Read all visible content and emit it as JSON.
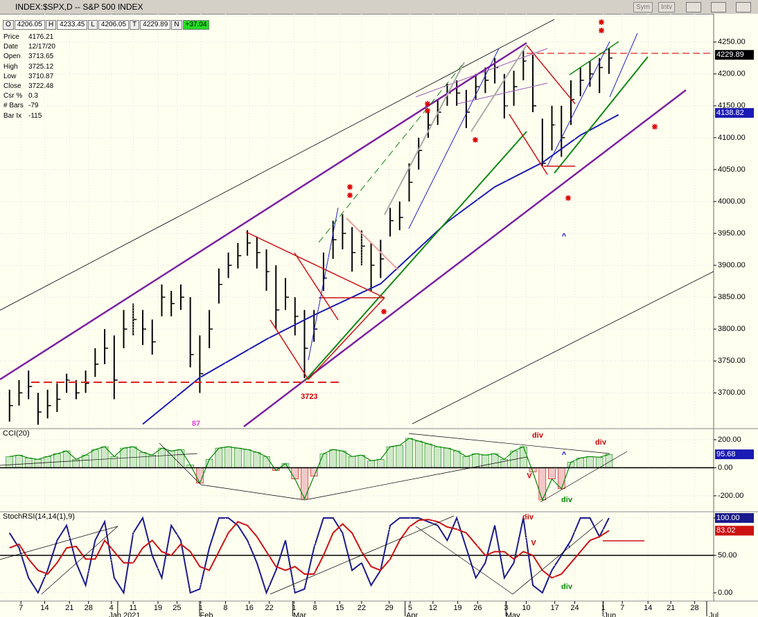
{
  "window": {
    "title": "INDEX:$SPX,D -- S&P 500 INDEX",
    "buttons": [
      "Sym",
      "Intv"
    ]
  },
  "ohlc_row": [
    {
      "label": "O",
      "value": "4206.05"
    },
    {
      "label": "H",
      "value": "4233.45"
    },
    {
      "label": "L",
      "value": "4206.05"
    },
    {
      "label": "T",
      "value": "4229.89"
    },
    {
      "label": "N",
      "value": "+37.04"
    }
  ],
  "info": [
    [
      "Price",
      "4176.21"
    ],
    [
      "Date",
      "12/17/20"
    ],
    [
      "Open",
      "3713.65"
    ],
    [
      "High",
      "3725.12"
    ],
    [
      "Low",
      "3710.87"
    ],
    [
      "Close",
      "3722.48"
    ],
    [
      "Csr %",
      "0.3"
    ],
    [
      "# Bars",
      "-79"
    ],
    [
      "Bar Ix",
      "-115"
    ]
  ],
  "chart_data": [
    {
      "type": "ohlc",
      "color": "#000000",
      "x": [
        1,
        2,
        3,
        4,
        5,
        6,
        7,
        8,
        9,
        10,
        11,
        12,
        13,
        14,
        15,
        16,
        17,
        18,
        19,
        20,
        21,
        22,
        23,
        24,
        25,
        26,
        27,
        28,
        29,
        30,
        31,
        32,
        33,
        34,
        35,
        36,
        37,
        38,
        39,
        40,
        41,
        42,
        43,
        44,
        45,
        46,
        47,
        48,
        49,
        50,
        51,
        52,
        53,
        54,
        55,
        56,
        57,
        58,
        59,
        60,
        61,
        62,
        63,
        64
      ],
      "high": [
        3705,
        3720,
        3735,
        3700,
        3705,
        3715,
        3730,
        3720,
        3735,
        3770,
        3800,
        3790,
        3830,
        3840,
        3830,
        3815,
        3870,
        3860,
        3870,
        3850,
        3790,
        3830,
        3895,
        3920,
        3935,
        3955,
        3945,
        3925,
        3900,
        3880,
        3850,
        3830,
        3830,
        3920,
        3970,
        3980,
        3960,
        3955,
        3935,
        3940,
        3990,
        4000,
        4060,
        4100,
        4145,
        4160,
        4185,
        4190,
        4175,
        4200,
        4210,
        4225,
        4200,
        4205,
        4238,
        4230,
        4130,
        4150,
        4150,
        4190,
        4210,
        4220,
        4225,
        4240
      ],
      "low": [
        3655,
        3680,
        3690,
        3650,
        3660,
        3670,
        3700,
        3690,
        3700,
        3725,
        3745,
        3690,
        3770,
        3790,
        3775,
        3760,
        3820,
        3820,
        3830,
        3740,
        3700,
        3770,
        3840,
        3880,
        3895,
        3915,
        3895,
        3860,
        3800,
        3830,
        3790,
        3723,
        3780,
        3860,
        3910,
        3925,
        3890,
        3900,
        3860,
        3880,
        3945,
        3955,
        4000,
        4050,
        4100,
        4120,
        4150,
        4150,
        4115,
        4160,
        4170,
        4185,
        4130,
        4150,
        4190,
        4140,
        4055,
        4080,
        4070,
        4120,
        4165,
        4180,
        4170,
        4200
      ],
      "close": [
        3680,
        3700,
        3710,
        3670,
        3680,
        3690,
        3720,
        3700,
        3715,
        3745,
        3770,
        3720,
        3800,
        3815,
        3800,
        3780,
        3850,
        3840,
        3850,
        3760,
        3730,
        3800,
        3870,
        3900,
        3915,
        3935,
        3920,
        3890,
        3830,
        3850,
        3820,
        3770,
        3800,
        3880,
        3940,
        3950,
        3920,
        3930,
        3900,
        3910,
        3970,
        3975,
        4030,
        4080,
        4120,
        4140,
        4170,
        4170,
        4140,
        4180,
        4190,
        4210,
        4150,
        4180,
        4220,
        4150,
        4060,
        4120,
        4100,
        4160,
        4190,
        4200,
        4210,
        4225
      ],
      "moving_average": {
        "color": "#1a1ab4",
        "x": [
          15,
          21,
          28,
          33,
          40,
          47,
          52,
          57,
          61,
          65
        ],
        "values": [
          3651,
          3724,
          3784,
          3822,
          3871,
          3968,
          4023,
          4061,
          4104,
          4136
        ]
      },
      "last_price": 4229.89,
      "last_ma": 4138.82,
      "xlim": [
        0,
        75
      ],
      "ylim": [
        3645,
        4292
      ],
      "yticks": [
        {
          "value": 3700,
          "label": "3700.00"
        },
        {
          "value": 3750,
          "label": "3750.00"
        },
        {
          "value": 3800,
          "label": "3800.00"
        },
        {
          "value": 3850,
          "label": "3850.00"
        },
        {
          "value": 3900,
          "label": "3900.00"
        },
        {
          "value": 3950,
          "label": "3950.00"
        },
        {
          "value": 4000,
          "label": "4000.00"
        },
        {
          "value": 4050,
          "label": "4050.00"
        },
        {
          "value": 4100,
          "label": "4100.00"
        },
        {
          "value": 4150,
          "label": "4150.00"
        },
        {
          "value": 4200,
          "label": "4200.00"
        },
        {
          "value": 4250,
          "label": "4250.00"
        }
      ],
      "annotations": [
        {
          "text": "3723",
          "color": "#cc0000"
        },
        {
          "text": "87",
          "color": "#e040e0"
        },
        {
          "text": "^",
          "color": "#0000cc"
        }
      ]
    },
    {
      "type": "histogram",
      "title": "CCI(20)",
      "color": "#008800",
      "negative_color": "#cc0000",
      "values": [
        80,
        90,
        70,
        60,
        80,
        100,
        120,
        60,
        90,
        130,
        150,
        80,
        140,
        150,
        110,
        90,
        140,
        120,
        130,
        20,
        -110,
        60,
        140,
        150,
        140,
        130,
        110,
        80,
        -20,
        30,
        -80,
        -220,
        -60,
        100,
        130,
        120,
        80,
        90,
        50,
        60,
        150,
        160,
        210,
        190,
        170,
        150,
        140,
        120,
        80,
        100,
        90,
        100,
        60,
        120,
        150,
        -30,
        -230,
        -80,
        -150,
        40,
        70,
        80,
        75,
        95
      ],
      "last_value": 95.68,
      "ylim": [
        -309,
        274
      ],
      "yticks": [
        {
          "value": -200,
          "label": "-200.00"
        },
        {
          "value": 0,
          "label": "0.00"
        },
        {
          "value": 200,
          "label": "200.00"
        }
      ],
      "annotations": [
        {
          "text": "div",
          "color": "#cc0000"
        },
        {
          "text": "div",
          "color": "#cc0000"
        },
        {
          "text": "V",
          "color": "#cc0000"
        },
        {
          "text": "^",
          "color": "#0000cc"
        },
        {
          "text": "div",
          "color": "#008800"
        }
      ]
    },
    {
      "type": "line",
      "title": "StochRSI(14,14(1),9)",
      "series": [
        {
          "color": "#1a1a8c",
          "values": [
            80,
            60,
            20,
            0,
            30,
            70,
            90,
            40,
            10,
            70,
            95,
            20,
            0,
            80,
            100,
            50,
            20,
            90,
            70,
            0,
            5,
            60,
            100,
            100,
            90,
            70,
            40,
            0,
            30,
            70,
            0,
            5,
            60,
            100,
            100,
            80,
            30,
            40,
            10,
            30,
            90,
            100,
            100,
            100,
            95,
            90,
            70,
            100,
            60,
            20,
            40,
            90,
            20,
            40,
            100,
            10,
            0,
            30,
            50,
            70,
            100,
            100,
            75,
            100
          ]
        },
        {
          "color": "#cc1111",
          "values": [
            60,
            65,
            45,
            30,
            25,
            40,
            60,
            62,
            45,
            45,
            70,
            55,
            40,
            40,
            60,
            70,
            55,
            50,
            65,
            55,
            35,
            30,
            55,
            80,
            95,
            90,
            75,
            55,
            35,
            30,
            35,
            25,
            25,
            50,
            80,
            92,
            80,
            55,
            35,
            30,
            45,
            70,
            88,
            97,
            98,
            95,
            88,
            85,
            80,
            65,
            50,
            55,
            55,
            45,
            55,
            50,
            30,
            20,
            25,
            40,
            55,
            70,
            75,
            83
          ]
        }
      ],
      "last_values": [
        {
          "value": 100,
          "label": "100.00"
        },
        83.02
      ],
      "ylim": [
        -11.1,
        107.4
      ],
      "yticks": [
        {
          "value": 0,
          "label": "0.00"
        },
        {
          "value": 50,
          "label": "50.00"
        },
        {
          "value": 100,
          "label": "100.00"
        }
      ],
      "xticks": [
        {
          "value": 2.2,
          "label": "7"
        },
        {
          "value": 4.7,
          "label": "14"
        },
        {
          "value": 7.3,
          "label": "21"
        },
        {
          "value": 9.3,
          "label": "28"
        },
        {
          "value": 11.7,
          "label": "4"
        },
        {
          "value": 14,
          "label": "11"
        },
        {
          "value": 16.6,
          "label": "19"
        },
        {
          "value": 18.6,
          "label": "25"
        },
        {
          "value": 21.1,
          "label": "1"
        },
        {
          "value": 23.7,
          "label": "8"
        },
        {
          "value": 26.2,
          "label": "16"
        },
        {
          "value": 28.3,
          "label": "22"
        },
        {
          "value": 30.9,
          "label": "1"
        },
        {
          "value": 33.1,
          "label": "8"
        },
        {
          "value": 35.7,
          "label": "15"
        },
        {
          "value": 38,
          "label": "22"
        },
        {
          "value": 40.9,
          "label": "29"
        },
        {
          "value": 43.1,
          "label": "5"
        },
        {
          "value": 45.5,
          "label": "12"
        },
        {
          "value": 48.1,
          "label": "19"
        },
        {
          "value": 50.2,
          "label": "26"
        },
        {
          "value": 53.2,
          "label": "3"
        },
        {
          "value": 55.3,
          "label": "10"
        },
        {
          "value": 58.3,
          "label": "17"
        },
        {
          "value": 60.4,
          "label": "24"
        },
        {
          "value": 63.4,
          "label": "1"
        },
        {
          "value": 65.4,
          "label": "7"
        },
        {
          "value": 68.1,
          "label": "14"
        },
        {
          "value": 70.5,
          "label": "21"
        },
        {
          "value": 73,
          "label": "28"
        }
      ],
      "month_ticks": [
        {
          "value": 13.1,
          "label": "Jan 2021"
        },
        {
          "value": 21.7,
          "label": "Feb"
        },
        {
          "value": 31.5,
          "label": "Mar"
        },
        {
          "value": 43.3,
          "label": "Apr"
        },
        {
          "value": 53.9,
          "label": "May"
        },
        {
          "value": 64.1,
          "label": "Jun"
        },
        {
          "value": 75,
          "label": "Jul"
        }
      ],
      "annotations": [
        {
          "text": "div",
          "color": "#cc0000"
        },
        {
          "text": "V",
          "color": "#cc0000"
        },
        {
          "text": "^",
          "color": "#0000cc"
        },
        {
          "text": "div",
          "color": "#008800"
        }
      ]
    }
  ]
}
